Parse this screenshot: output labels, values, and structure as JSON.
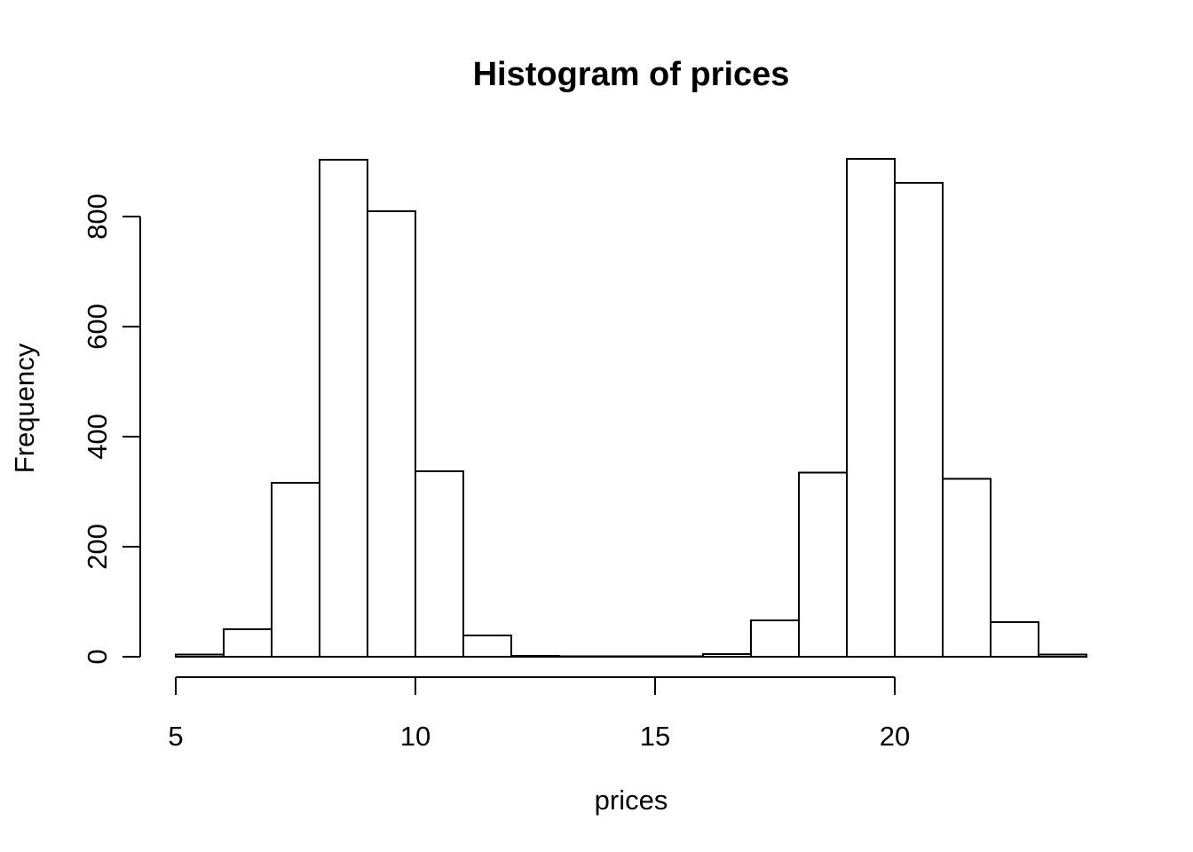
{
  "figure": {
    "background_color": "#ffffff",
    "line_color": "#000000"
  },
  "chart_data": {
    "type": "bar",
    "subtype": "histogram",
    "title": "Histogram of prices",
    "xlabel": "prices",
    "ylabel": "Frequency",
    "bin_width": 1,
    "bin_edges": [
      5,
      6,
      7,
      8,
      9,
      10,
      11,
      12,
      13,
      14,
      15,
      16,
      17,
      18,
      19,
      20,
      21,
      22,
      23,
      24
    ],
    "counts": [
      4,
      50,
      316,
      903,
      810,
      337,
      39,
      2,
      1,
      1,
      1,
      5,
      66,
      335,
      905,
      861,
      323,
      63,
      4
    ],
    "x_ticks": [
      5,
      10,
      15,
      20
    ],
    "y_ticks": [
      0,
      200,
      400,
      600,
      800
    ],
    "xlim": [
      5,
      24
    ],
    "ylim": [
      0,
      905
    ],
    "grid": false,
    "legend_position": "none",
    "bar_fill": "#ffffff",
    "bar_stroke": "#000000"
  }
}
